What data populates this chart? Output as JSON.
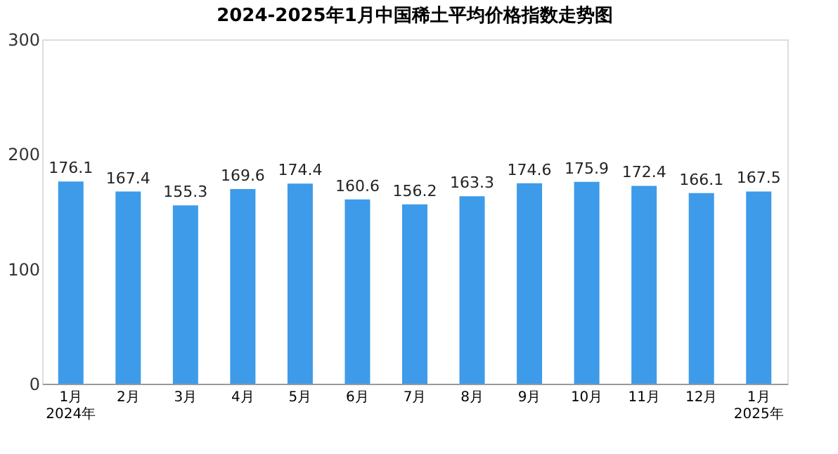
{
  "chart_data": {
    "type": "bar",
    "title": "2024-2025年1月中国稀土平均价格指数走势图",
    "categories": [
      "1月\n2024年",
      "2月",
      "3月",
      "4月",
      "5月",
      "6月",
      "7月",
      "8月",
      "9月",
      "10月",
      "11月",
      "12月",
      "1月\n2025年"
    ],
    "values": [
      176.1,
      167.4,
      155.3,
      169.6,
      174.4,
      160.6,
      156.2,
      163.3,
      174.6,
      175.9,
      172.4,
      166.1,
      167.5
    ],
    "color": "#3d9be9",
    "ylim": [
      0,
      300
    ],
    "yticks": [
      0,
      100,
      200,
      300
    ],
    "grid": false,
    "data_labels": true
  }
}
